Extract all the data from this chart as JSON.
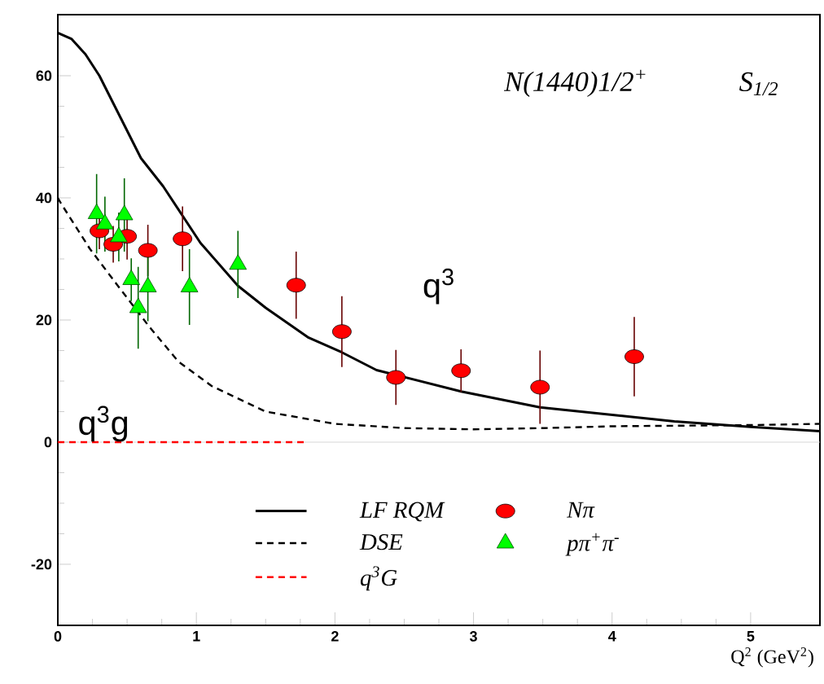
{
  "chart_data": {
    "type": "line",
    "title": "N(1440)1/2$^{+}$",
    "subtitle": "S$_{1/2}$",
    "xlabel": "Q$^{2}$ (GeV$^{2}$)",
    "xlim": [
      0,
      5.5
    ],
    "ylim": [
      -30,
      70
    ],
    "xticks": [
      0,
      1,
      2,
      3,
      4,
      5
    ],
    "yticks": [
      -20,
      0,
      20,
      40,
      60
    ],
    "grid": false,
    "legend": "bottom",
    "series": [
      {
        "name": "LF RQM",
        "color": "#000000",
        "line_style": "solid",
        "marker": "none",
        "x": [
          0,
          0.1,
          0.2,
          0.3,
          0.4,
          0.5,
          0.6,
          0.76,
          1.03,
          1.3,
          1.5,
          1.81,
          2.05,
          2.3,
          2.91,
          3.48,
          4.45,
          5.0,
          5.5
        ],
        "values": [
          67,
          66,
          63.5,
          60,
          55.5,
          51,
          46.5,
          41.9,
          32.6,
          25.6,
          22,
          17.1,
          14.7,
          11.8,
          8.3,
          5.7,
          3.4,
          2.5,
          1.8
        ]
      },
      {
        "name": "DSE",
        "color": "#000000",
        "line_style": "dashed",
        "marker": "none",
        "x": [
          0,
          0.02,
          0.23,
          0.42,
          0.66,
          0.87,
          1.11,
          1.5,
          2.0,
          2.5,
          3.0,
          3.5,
          4.0,
          5.0,
          5.5
        ],
        "values": [
          40,
          39.2,
          31.7,
          26,
          18.9,
          13.2,
          9.2,
          5,
          3,
          2.3,
          2.1,
          2.3,
          2.6,
          2.8,
          3.0
        ]
      },
      {
        "name": "q$^{3}$G",
        "color": "#ff0000",
        "line_style": "dashed",
        "marker": "none",
        "x": [
          0,
          1.8
        ],
        "values": [
          0,
          0
        ]
      },
      {
        "name": "Nπ",
        "type": "scatter",
        "color": "#ff0000",
        "marker": "circle",
        "x": [
          0.3,
          0.4,
          0.5,
          0.65,
          0.9,
          1.72,
          2.05,
          2.44,
          2.91,
          3.48,
          4.16
        ],
        "values": [
          34.6,
          32.4,
          33.7,
          31.4,
          33.3,
          25.7,
          18.1,
          10.6,
          11.7,
          9.0,
          14.0
        ],
        "errors": [
          3,
          3,
          3.8,
          4.2,
          5.3,
          5.5,
          5.8,
          4.5,
          3.5,
          6,
          6.5
        ]
      },
      {
        "name": "pπ$^{+}$π$^{-}$",
        "type": "scatter",
        "color": "#00ff00",
        "marker": "triangle",
        "x": [
          0.28,
          0.34,
          0.44,
          0.48,
          0.53,
          0.58,
          0.65,
          0.95,
          1.3
        ],
        "values": [
          37.4,
          35.7,
          33.6,
          37.2,
          26.6,
          22.0,
          25.4,
          25.4,
          29.1
        ],
        "errors": [
          6.5,
          4.5,
          4,
          6,
          3.5,
          6.7,
          5.6,
          6.2,
          5.5
        ]
      }
    ],
    "ref_lines": [
      {
        "axis": "y",
        "value": 0,
        "color": "#cccccc",
        "line_style": "solid"
      }
    ],
    "annotations": [
      "q$^{3}$",
      "q$^{3}$g"
    ]
  }
}
